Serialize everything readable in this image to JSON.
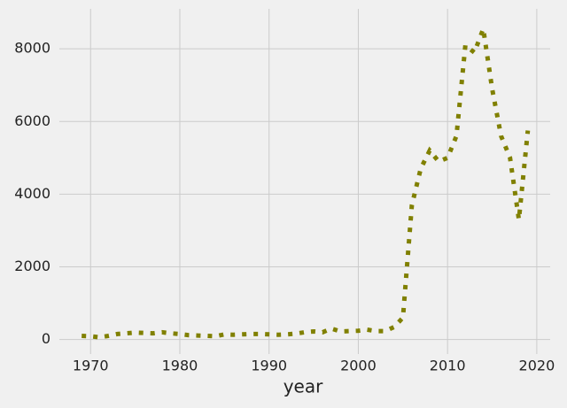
{
  "chart_data": {
    "type": "line",
    "xlabel": "year",
    "x": [
      1969,
      1970,
      1971,
      1972,
      1973,
      1974,
      1975,
      1976,
      1977,
      1978,
      1979,
      1980,
      1981,
      1982,
      1983,
      1984,
      1985,
      1986,
      1987,
      1988,
      1989,
      1990,
      1991,
      1992,
      1993,
      1994,
      1995,
      1996,
      1997,
      1998,
      1999,
      2000,
      2001,
      2002,
      2003,
      2004,
      2005,
      2006,
      2007,
      2008,
      2009,
      2010,
      2011,
      2012,
      2013,
      2014,
      2015,
      2016,
      2017,
      2018,
      2019
    ],
    "values": [
      100,
      90,
      60,
      100,
      150,
      170,
      190,
      180,
      170,
      200,
      170,
      150,
      120,
      110,
      100,
      90,
      140,
      130,
      140,
      150,
      150,
      140,
      130,
      140,
      160,
      200,
      220,
      200,
      300,
      220,
      230,
      240,
      270,
      230,
      230,
      340,
      600,
      3700,
      4700,
      5200,
      4900,
      5000,
      5600,
      8100,
      7900,
      8550,
      6900,
      5600,
      5000,
      3300,
      5750
    ],
    "color": "#808000",
    "linestyle": "dotted",
    "xlim": [
      1966.5,
      2021.5
    ],
    "xticks": [
      1970,
      1980,
      1990,
      2000,
      2010,
      2020
    ],
    "ylim": [
      -400,
      9100
    ],
    "yticks": [
      0,
      2000,
      4000,
      6000,
      8000
    ],
    "grid": true
  }
}
